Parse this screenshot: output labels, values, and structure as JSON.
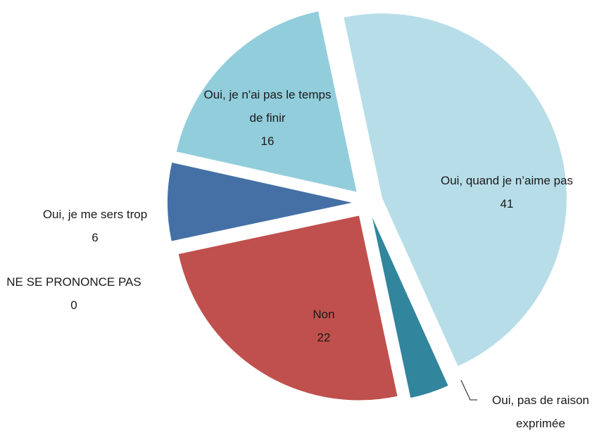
{
  "chart_data": {
    "type": "pie",
    "categories": [
      "Oui, quand je n’aime pas",
      "Oui, pas de raison exprimée",
      "Non",
      "NE SE PRONONCE PAS",
      "Oui, je me sers trop",
      "Oui, je n'ai pas le temps de finir"
    ],
    "values": [
      41,
      3,
      22,
      0,
      6,
      16
    ],
    "colors": [
      "#b7dde8",
      "#31859c",
      "#c0504d",
      "#8064a2",
      "#4470a5",
      "#92cddc"
    ]
  }
}
